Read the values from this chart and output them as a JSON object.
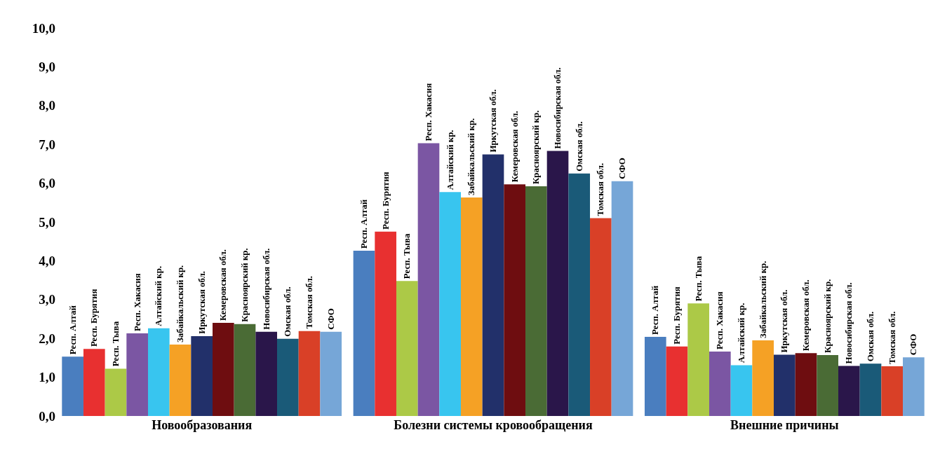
{
  "chart_data": {
    "type": "bar",
    "categories": [
      "Новообразования",
      "Болезни системы кровообращения",
      "Внешние причины"
    ],
    "series": [
      {
        "name": "Респ. Алтай",
        "color": "#4a7ebf",
        "values": [
          1.53,
          4.26,
          2.04
        ]
      },
      {
        "name": "Респ. Бурятия",
        "color": "#e83030",
        "values": [
          1.73,
          4.75,
          1.79
        ]
      },
      {
        "name": "Респ. Тыва",
        "color": "#acc947",
        "values": [
          1.22,
          3.48,
          2.9
        ]
      },
      {
        "name": "Респ. Хакасия",
        "color": "#7b56a3",
        "values": [
          2.13,
          7.03,
          1.66
        ]
      },
      {
        "name": "Алтайский кр.",
        "color": "#38c5ef",
        "values": [
          2.26,
          5.77,
          1.31
        ]
      },
      {
        "name": "Забайкальский кр.",
        "color": "#f5a125",
        "values": [
          1.84,
          5.63,
          1.95
        ]
      },
      {
        "name": "Иркутская обл.",
        "color": "#22306a",
        "values": [
          2.06,
          6.74,
          1.58
        ]
      },
      {
        "name": "Кемеровская обл.",
        "color": "#6e0d10",
        "values": [
          2.4,
          5.97,
          1.62
        ]
      },
      {
        "name": "Красноярский кр.",
        "color": "#4a6b35",
        "values": [
          2.37,
          5.92,
          1.57
        ]
      },
      {
        "name": "Новосибирская обл.",
        "color": "#2a164a",
        "values": [
          2.17,
          6.83,
          1.29
        ]
      },
      {
        "name": "Омская обл.",
        "color": "#1a5a78",
        "values": [
          1.99,
          6.25,
          1.35
        ]
      },
      {
        "name": "Томская обл.",
        "color": "#d94027",
        "values": [
          2.19,
          5.1,
          1.28
        ]
      },
      {
        "name": "СФО",
        "color": "#76a6d7",
        "values": [
          2.17,
          6.05,
          1.51
        ]
      }
    ],
    "ylim": [
      0,
      10
    ],
    "yticks": [
      {
        "value": 0,
        "label": "0,0"
      },
      {
        "value": 1,
        "label": "1,0"
      },
      {
        "value": 2,
        "label": "2,0"
      },
      {
        "value": 3,
        "label": "3,0"
      },
      {
        "value": 4,
        "label": "4,0"
      },
      {
        "value": 5,
        "label": "5,0"
      },
      {
        "value": 6,
        "label": "6,0"
      },
      {
        "value": 7,
        "label": "7,0"
      },
      {
        "value": 8,
        "label": "8,0"
      },
      {
        "value": 9,
        "label": "9,0"
      },
      {
        "value": 10,
        "label": "10,0"
      }
    ],
    "legend": false
  }
}
